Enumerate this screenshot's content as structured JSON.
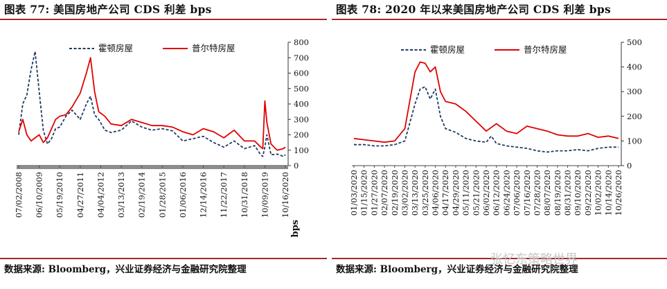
{
  "colors": {
    "navy": "#1f3a63",
    "red": "#e00000",
    "rule": "#a32a2a",
    "axis_bar": "#8c8c8c"
  },
  "watermark": "张忆东策略世界",
  "chart_data": [
    {
      "type": "line",
      "title": "图表 77: 美国房地产公司 CDS 利差  bps",
      "source": "数据来源: Bloomberg，兴业证券经济与金融研究院整理",
      "ylabel": "bps",
      "ylim": [
        0,
        800
      ],
      "yticks": [
        0,
        100,
        200,
        300,
        400,
        500,
        600,
        700,
        800
      ],
      "x_tick_labels": [
        "07/02/2008",
        "06/10/2009",
        "05/19/2010",
        "04/27/2011",
        "04/04/2012",
        "03/13/2013",
        "02/19/2014",
        "01/28/2015",
        "01/06/2016",
        "12/14/2016",
        "11/22/2017",
        "10/31/2018",
        "10/09/2019",
        "10/16/2020"
      ],
      "legend": [
        "霍顿房屋",
        "普尔特房屋"
      ],
      "series": [
        {
          "name": "霍顿房屋",
          "style": "dashed",
          "color": "#1f3a63",
          "x": [
            0,
            0.2,
            0.4,
            0.6,
            0.8,
            1.0,
            1.2,
            1.4,
            1.6,
            1.8,
            2.0,
            2.3,
            2.6,
            3.0,
            3.3,
            3.5,
            3.7,
            3.9,
            4.2,
            4.5,
            5.0,
            5.5,
            6.0,
            6.5,
            7.0,
            7.5,
            8.0,
            8.5,
            9.0,
            9.5,
            10.0,
            10.5,
            11.0,
            11.5,
            11.8,
            11.9,
            12.0,
            12.1,
            12.3,
            12.6,
            12.9,
            13.0
          ],
          "values": [
            200,
            400,
            460,
            620,
            740,
            480,
            230,
            140,
            175,
            240,
            250,
            320,
            360,
            300,
            400,
            450,
            330,
            300,
            230,
            215,
            230,
            290,
            250,
            230,
            240,
            225,
            160,
            175,
            190,
            150,
            120,
            160,
            110,
            130,
            70,
            60,
            120,
            200,
            70,
            75,
            60,
            70
          ]
        },
        {
          "name": "普尔特房屋",
          "style": "solid",
          "color": "#e00000",
          "x": [
            0,
            0.2,
            0.4,
            0.6,
            0.8,
            1.0,
            1.2,
            1.4,
            1.6,
            1.8,
            2.0,
            2.3,
            2.6,
            3.0,
            3.3,
            3.5,
            3.7,
            3.9,
            4.2,
            4.5,
            5.0,
            5.5,
            6.0,
            6.5,
            7.0,
            7.5,
            8.0,
            8.5,
            9.0,
            9.5,
            10.0,
            10.5,
            11.0,
            11.5,
            11.8,
            11.9,
            12.0,
            12.1,
            12.3,
            12.6,
            12.9,
            13.0
          ],
          "values": [
            220,
            300,
            200,
            160,
            180,
            200,
            150,
            180,
            240,
            300,
            320,
            330,
            380,
            470,
            600,
            700,
            480,
            350,
            320,
            270,
            260,
            300,
            280,
            260,
            260,
            250,
            220,
            200,
            240,
            220,
            180,
            230,
            160,
            160,
            120,
            110,
            420,
            280,
            140,
            100,
            110,
            120
          ]
        }
      ]
    },
    {
      "type": "line",
      "title": "图表 78: 2020 年以来美国房地产公司 CDS 利差  bps",
      "source": "数据来源: Bloomberg，兴业证券经济与金融研究院整理",
      "ylabel": "",
      "ylim": [
        0,
        500
      ],
      "yticks": [
        0,
        100,
        200,
        300,
        400,
        500
      ],
      "x_tick_labels": [
        "01/03/2020",
        "01/15/2020",
        "01/27/2020",
        "02/07/2020",
        "02/19/2020",
        "03/02/2020",
        "03/13/2020",
        "03/25/2020",
        "04/06/2020",
        "04/17/2020",
        "04/29/2020",
        "05/11/2020",
        "05/21/2020",
        "06/02/2020",
        "06/12/2020",
        "06/24/2020",
        "07/06/2020",
        "07/16/2020",
        "07/28/2020",
        "08/07/2020",
        "08/19/2020",
        "08/31/2020",
        "09/10/2020",
        "09/22/2020",
        "10/02/2020",
        "10/14/2020",
        "10/26/2020"
      ],
      "legend": [
        "霍顿房屋",
        "普尔特房屋"
      ],
      "series": [
        {
          "name": "霍顿房屋",
          "style": "dashed",
          "color": "#1f3a63",
          "x": [
            0,
            1,
            2,
            3,
            4,
            5,
            6,
            6.5,
            7,
            7.5,
            8,
            8.5,
            9,
            10,
            11,
            12,
            13,
            13.5,
            14,
            15,
            16,
            17,
            18,
            19,
            20,
            21,
            22,
            23,
            24,
            25,
            26
          ],
          "values": [
            85,
            85,
            80,
            80,
            85,
            100,
            250,
            310,
            320,
            270,
            310,
            200,
            150,
            135,
            110,
            100,
            95,
            120,
            90,
            80,
            75,
            70,
            60,
            55,
            60,
            60,
            65,
            60,
            70,
            75,
            75
          ]
        },
        {
          "name": "普尔特房屋",
          "style": "solid",
          "color": "#e00000",
          "x": [
            0,
            1,
            2,
            3,
            4,
            5,
            6,
            6.5,
            7,
            7.5,
            8,
            8.5,
            9,
            10,
            11,
            12,
            13,
            14,
            15,
            16,
            17,
            18,
            19,
            20,
            21,
            22,
            23,
            24,
            25,
            26
          ],
          "values": [
            110,
            105,
            100,
            95,
            100,
            150,
            380,
            420,
            415,
            380,
            400,
            300,
            260,
            250,
            220,
            180,
            140,
            170,
            140,
            130,
            160,
            150,
            140,
            125,
            120,
            120,
            130,
            115,
            120,
            110
          ]
        }
      ]
    }
  ]
}
